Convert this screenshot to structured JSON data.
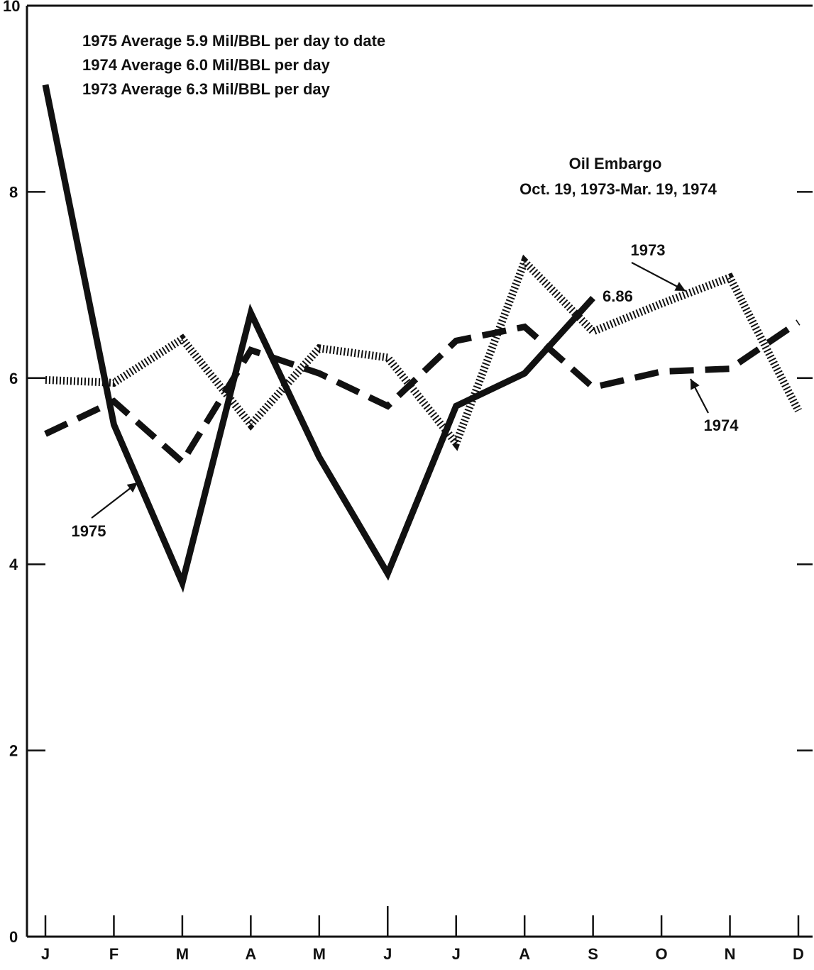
{
  "chart_data": {
    "type": "line",
    "title": "",
    "xlabel": "",
    "ylabel": "",
    "categories": [
      "J",
      "F",
      "M",
      "A",
      "M",
      "J",
      "J",
      "A",
      "S",
      "O",
      "N",
      "D"
    ],
    "yticks": [
      "10",
      "8",
      "6",
      "4",
      "2",
      "0"
    ],
    "ylim": [
      0,
      10
    ],
    "grid": false,
    "notes": [
      "1975 Average 5.9 Mil/BBL per day to date",
      "1974 Average 6.0 Mil/BBL per day",
      "1973 Average 6.3 Mil/BBL per day"
    ],
    "embargo": {
      "title": "Oil Embargo",
      "range": "Oct. 19, 1973-Mar. 19, 1974"
    },
    "series": [
      {
        "name": "1975",
        "style": "solid",
        "color": "#111111",
        "values": [
          9.15,
          5.5,
          3.8,
          6.7,
          5.15,
          3.9,
          5.7,
          6.05,
          6.86,
          null,
          null,
          null
        ],
        "end_label": "6.86"
      },
      {
        "name": "1974",
        "style": "dashed",
        "color": "#111111",
        "values": [
          5.4,
          5.75,
          5.1,
          6.3,
          6.05,
          5.7,
          6.4,
          6.55,
          5.9,
          6.07,
          6.1,
          6.6
        ]
      },
      {
        "name": "1973",
        "style": "dotted",
        "color": "#111111",
        "values": [
          5.98,
          5.95,
          6.42,
          5.5,
          6.32,
          6.22,
          5.3,
          7.25,
          6.5,
          6.8,
          7.08,
          5.65
        ]
      }
    ]
  }
}
